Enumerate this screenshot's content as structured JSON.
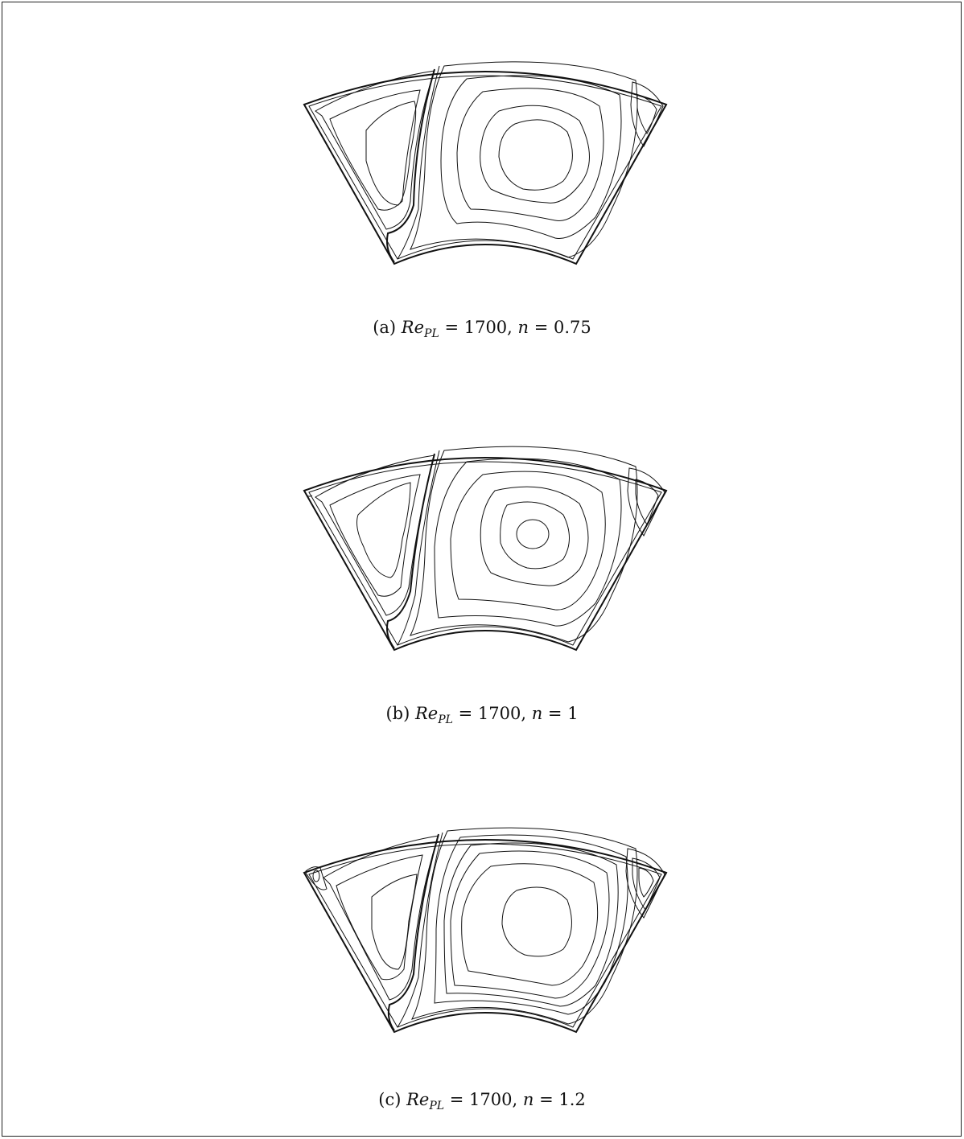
{
  "figure": {
    "panels": [
      {
        "id": "a",
        "caption": {
          "tag": "(a)",
          "var": "Re",
          "sub": "PL",
          "eq": "= 1700,",
          "nvar": "n",
          "neq": "= 0.75"
        }
      },
      {
        "id": "b",
        "caption": {
          "tag": "(b)",
          "var": "Re",
          "sub": "PL",
          "eq": "= 1700,",
          "nvar": "n",
          "neq": "= 1"
        }
      },
      {
        "id": "c",
        "caption": {
          "tag": "(c)",
          "var": "Re",
          "sub": "PL",
          "eq": "= 1700,",
          "nvar": "n",
          "neq": "= 1.2"
        }
      }
    ]
  }
}
